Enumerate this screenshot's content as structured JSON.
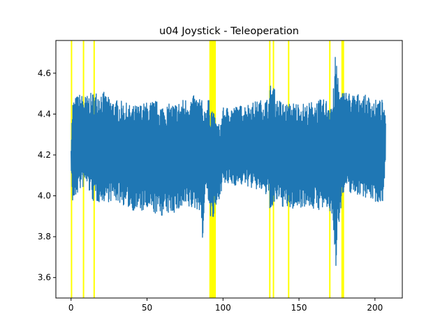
{
  "chart_data": {
    "type": "line",
    "title": "u04 Joystick - Teleoperation",
    "xlabel": "",
    "ylabel": "",
    "xlim": [
      -10,
      218
    ],
    "ylim": [
      3.5,
      4.76
    ],
    "x_ticks": [
      0,
      50,
      100,
      150,
      200
    ],
    "x_tick_labels": [
      "0",
      "50",
      "100",
      "150",
      "200"
    ],
    "y_ticks": [
      3.6,
      3.8,
      4.0,
      4.2,
      4.4,
      4.6
    ],
    "y_tick_labels": [
      "3.6",
      "3.8",
      "4.0",
      "4.2",
      "4.4",
      "4.6"
    ],
    "grid": false,
    "series": [
      {
        "color": "#1f77b4",
        "x": [
          0,
          1,
          5,
          10,
          15,
          20,
          25,
          30,
          35,
          40,
          45,
          50,
          55,
          60,
          65,
          70,
          75,
          80,
          85,
          87,
          88,
          90,
          92,
          93,
          95,
          98,
          100,
          105,
          110,
          115,
          120,
          125,
          130,
          132,
          133,
          135,
          140,
          143,
          145,
          150,
          155,
          160,
          165,
          170,
          172,
          173,
          174,
          175,
          176,
          177,
          180,
          185,
          190,
          195,
          200,
          205,
          207
        ],
        "high": [
          4.24,
          4.47,
          4.5,
          4.49,
          4.51,
          4.52,
          4.48,
          4.47,
          4.46,
          4.44,
          4.45,
          4.46,
          4.47,
          4.45,
          4.45,
          4.46,
          4.48,
          4.49,
          4.49,
          4.45,
          4.43,
          4.48,
          4.45,
          4.44,
          4.37,
          4.35,
          4.43,
          4.44,
          4.44,
          4.45,
          4.46,
          4.47,
          4.48,
          4.58,
          4.56,
          4.48,
          4.46,
          4.45,
          4.46,
          4.46,
          4.45,
          4.47,
          4.47,
          4.48,
          4.48,
          4.55,
          4.7,
          4.66,
          4.6,
          4.5,
          4.52,
          4.5,
          4.5,
          4.49,
          4.47,
          4.47,
          4.38
        ],
        "low": [
          4.15,
          3.95,
          4.02,
          4.05,
          3.96,
          3.97,
          3.97,
          3.97,
          3.95,
          3.93,
          3.92,
          3.92,
          3.91,
          3.9,
          3.91,
          3.92,
          3.93,
          3.93,
          3.93,
          3.74,
          4.0,
          4.0,
          3.87,
          3.86,
          3.92,
          4.0,
          4.05,
          4.05,
          4.05,
          4.05,
          4.03,
          4.02,
          3.98,
          3.88,
          3.9,
          3.97,
          3.94,
          3.93,
          3.93,
          3.94,
          3.95,
          3.93,
          3.93,
          3.92,
          3.9,
          3.7,
          3.56,
          3.78,
          3.84,
          3.92,
          4.02,
          4.01,
          4.0,
          3.99,
          3.97,
          3.96,
          4.16
        ]
      }
    ],
    "highlight_color": "#ffff00",
    "highlight_lines": [
      0.3,
      8.2,
      15.2,
      130.8,
      133.2,
      143.2,
      170.3
    ],
    "highlight_bands": [
      [
        91.0,
        95.3
      ],
      [
        177.9,
        179.7
      ]
    ],
    "annotations": []
  }
}
